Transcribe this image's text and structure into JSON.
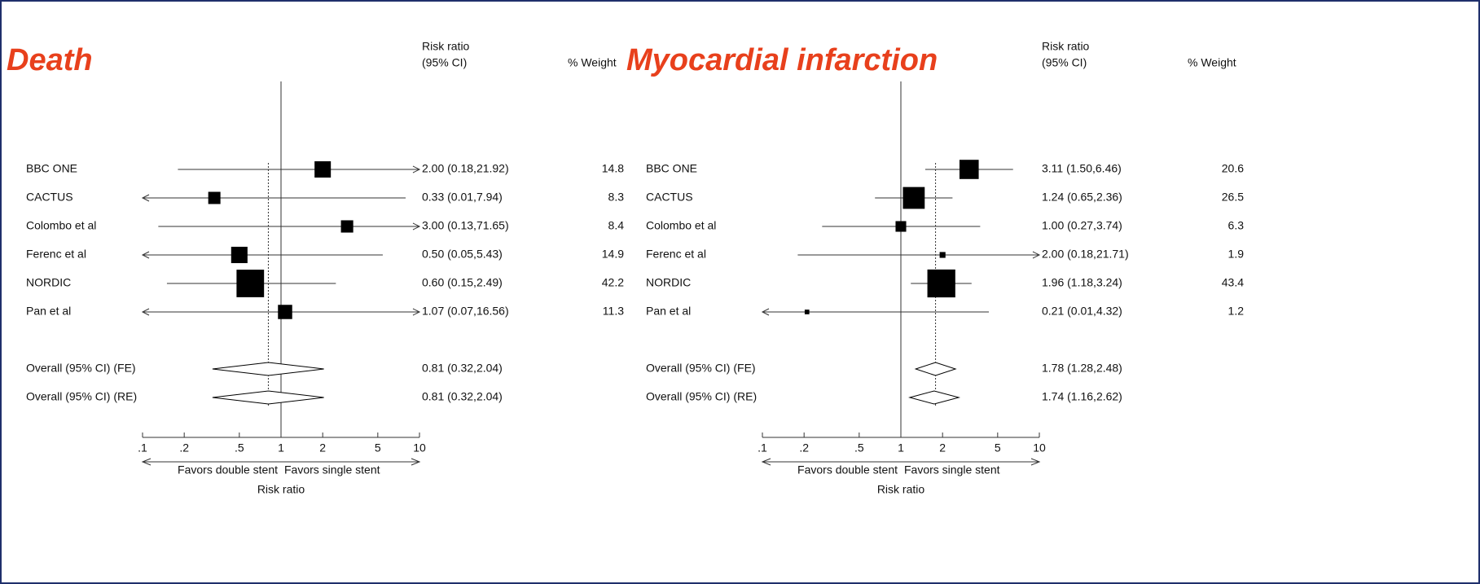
{
  "chart_data": [
    {
      "type": "forest",
      "title": "Death",
      "col_headers": [
        "Risk ratio",
        "(95% CI)"
      ],
      "weight_header": "% Weight",
      "studies": [
        {
          "name": "BBC ONE",
          "value": 2.0,
          "lower": 0.18,
          "upper": 21.92,
          "value_label": "2.00 (0.18,21.92)",
          "weight": 14.8
        },
        {
          "name": "CACTUS",
          "value": 0.33,
          "lower": 0.01,
          "upper": 7.94,
          "value_label": "0.33 (0.01,7.94)",
          "weight": 8.3
        },
        {
          "name": "Colombo et al",
          "value": 3.0,
          "lower": 0.13,
          "upper": 71.65,
          "value_label": "3.00 (0.13,71.65)",
          "weight": 8.4
        },
        {
          "name": "Ferenc et al",
          "value": 0.5,
          "lower": 0.05,
          "upper": 5.43,
          "value_label": "0.50 (0.05,5.43)",
          "weight": 14.9
        },
        {
          "name": "NORDIC",
          "value": 0.6,
          "lower": 0.15,
          "upper": 2.49,
          "value_label": "0.60 (0.15,2.49)",
          "weight": 42.2
        },
        {
          "name": "Pan et al",
          "value": 1.07,
          "lower": 0.07,
          "upper": 16.56,
          "value_label": "1.07 (0.07,16.56)",
          "weight": 11.3
        }
      ],
      "overall": [
        {
          "name": "Overall (95% CI) (FE)",
          "value": 0.81,
          "lower": 0.32,
          "upper": 2.04,
          "value_label": "0.81 (0.32,2.04)"
        },
        {
          "name": "Overall (95% CI) (RE)",
          "value": 0.81,
          "lower": 0.32,
          "upper": 2.04,
          "value_label": "0.81 (0.32,2.04)"
        }
      ],
      "xlim": [
        0.1,
        10
      ],
      "log_scale": true,
      "xticks": [
        {
          "value": 0.1,
          "label": ".1"
        },
        {
          "value": 0.2,
          "label": ".2"
        },
        {
          "value": 0.5,
          "label": ".5"
        },
        1,
        2,
        5,
        10
      ],
      "xlabel": "Risk ratio",
      "left_note": "Favors double stent",
      "right_note": "Favors single stent",
      "color": "#000000"
    },
    {
      "type": "forest",
      "title": "Myocardial infarction",
      "col_headers": [
        "Risk ratio",
        "(95% CI)"
      ],
      "weight_header": "% Weight",
      "studies": [
        {
          "name": "BBC ONE",
          "value": 3.11,
          "lower": 1.5,
          "upper": 6.46,
          "value_label": "3.11 (1.50,6.46)",
          "weight": 20.6
        },
        {
          "name": "CACTUS",
          "value": 1.24,
          "lower": 0.65,
          "upper": 2.36,
          "value_label": "1.24 (0.65,2.36)",
          "weight": 26.5
        },
        {
          "name": "Colombo et al",
          "value": 1.0,
          "lower": 0.27,
          "upper": 3.74,
          "value_label": "1.00 (0.27,3.74)",
          "weight": 6.3
        },
        {
          "name": "Ferenc et al",
          "value": 2.0,
          "lower": 0.18,
          "upper": 21.71,
          "value_label": "2.00 (0.18,21.71)",
          "weight": 1.9
        },
        {
          "name": "NORDIC",
          "value": 1.96,
          "lower": 1.18,
          "upper": 3.24,
          "value_label": "1.96 (1.18,3.24)",
          "weight": 43.4
        },
        {
          "name": "Pan et al",
          "value": 0.21,
          "lower": 0.01,
          "upper": 4.32,
          "value_label": "0.21 (0.01,4.32)",
          "weight": 1.2
        }
      ],
      "overall": [
        {
          "name": "Overall (95% CI) (FE)",
          "value": 1.78,
          "lower": 1.28,
          "upper": 2.48,
          "value_label": "1.78 (1.28,2.48)"
        },
        {
          "name": "Overall (95% CI) (RE)",
          "value": 1.74,
          "lower": 1.16,
          "upper": 2.62,
          "value_label": "1.74 (1.16,2.62)"
        }
      ],
      "xlim": [
        0.1,
        10
      ],
      "log_scale": true,
      "xticks": [
        {
          "value": 0.1,
          "label": ".1"
        },
        {
          "value": 0.2,
          "label": ".2"
        },
        {
          "value": 0.5,
          "label": ".5"
        },
        1,
        2,
        5,
        10
      ],
      "xlabel": "Risk ratio",
      "left_note": "Favors double stent",
      "right_note": "Favors single stent",
      "color": "#000000"
    }
  ]
}
